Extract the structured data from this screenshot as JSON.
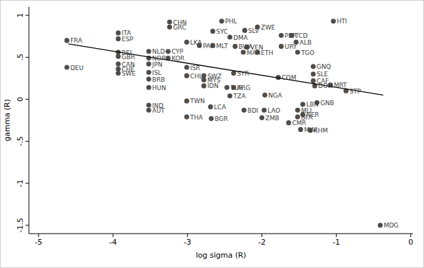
{
  "chart_data": {
    "type": "scatter",
    "x_label": "log sigma (R)",
    "y_label": "gamma (R)",
    "xlim": [
      -5.13,
      0.03
    ],
    "ylim": [
      -1.6,
      1.1
    ],
    "xticks": [
      -5,
      -4,
      -3,
      -2,
      -1,
      0
    ],
    "yticks": [
      -1.5,
      -1,
      {
        "value": -0.5,
        "label": "-.5"
      },
      0,
      {
        "value": 0.5,
        "label": ".5"
      },
      1
    ],
    "color": "#4d4d4d",
    "marker": "circle",
    "labels": [
      "FRA",
      "DEU",
      "ITA",
      "ESP",
      "BEL",
      "GBR",
      "CAN",
      "CHE",
      "SWE",
      "NLD",
      "NOR",
      "JPN",
      "ISL",
      "BRB",
      "HUN",
      "IND",
      "AUT",
      "CHN",
      "GRC",
      "CYP",
      "KOR",
      "LKA",
      "PAK",
      "ISR",
      "CHL",
      "SWZ",
      "MYS",
      "IDN",
      "TWN",
      "THA",
      "PHL",
      "SYC",
      "DMA",
      "MLT",
      "BWA",
      "VEN",
      "ZWE",
      "SLV",
      "PER",
      "TCD",
      "ALB",
      "URY",
      "TGO",
      "ETH",
      "MAR",
      "ARG",
      "TUR",
      "TZA",
      "SYR",
      "GNQ",
      "SLE",
      "MRT",
      "STP",
      "DOM",
      "HTI",
      "NGA",
      "LBN",
      "GNB",
      "MLI",
      "NER",
      "BFA",
      "CMR",
      "MWI",
      "KHM",
      "LAO",
      "ZMB",
      "BDI",
      "LCA",
      "BGR",
      "MDG",
      "COM",
      "CAF"
    ],
    "x": [
      -4.62,
      -4.62,
      -3.93,
      -3.93,
      -3.93,
      -3.93,
      -3.93,
      -3.93,
      -3.93,
      -3.52,
      -3.52,
      -3.52,
      -3.52,
      -3.52,
      -3.52,
      -3.52,
      -3.52,
      -3.24,
      -3.24,
      -3.26,
      -3.26,
      -3.01,
      -2.84,
      -3.01,
      -3.01,
      -2.78,
      -2.78,
      -2.78,
      -3.01,
      -3.01,
      -2.54,
      -2.66,
      -2.43,
      -2.66,
      -2.36,
      -2.2,
      -2.06,
      -2.23,
      -1.74,
      -1.6,
      -1.54,
      -1.74,
      -1.52,
      -2.06,
      -2.25,
      -2.38,
      -2.47,
      -2.43,
      -2.38,
      -1.31,
      -1.31,
      -1.08,
      -0.87,
      -1.29,
      -1.04,
      -1.96,
      -1.45,
      -1.26,
      -1.52,
      -1.45,
      -1.52,
      -1.64,
      -1.48,
      -1.35,
      -1.97,
      -2.0,
      -2.24,
      -2.69,
      -2.68,
      -0.41,
      -1.78,
      -1.31
    ],
    "values": [
      0.7,
      0.38,
      0.79,
      0.72,
      0.56,
      0.51,
      0.42,
      0.36,
      0.31,
      0.57,
      0.49,
      0.42,
      0.32,
      0.24,
      0.14,
      -0.07,
      -0.13,
      0.92,
      0.86,
      0.57,
      0.49,
      0.68,
      0.64,
      0.38,
      0.28,
      0.28,
      0.23,
      0.16,
      -0.02,
      -0.21,
      0.93,
      0.81,
      0.74,
      0.64,
      0.63,
      0.62,
      0.86,
      0.82,
      0.76,
      0.76,
      0.68,
      0.63,
      0.56,
      0.56,
      0.56,
      0.14,
      0.14,
      0.04,
      0.31,
      0.39,
      0.3,
      0.17,
      0.1,
      0.16,
      0.93,
      0.05,
      -0.06,
      -0.04,
      -0.13,
      -0.18,
      -0.21,
      -0.28,
      -0.36,
      -0.37,
      -0.13,
      -0.22,
      -0.13,
      -0.09,
      -0.23,
      -1.5,
      0.26,
      0.22
    ],
    "fit_line": {
      "x": [
        -4.6,
        -0.37
      ],
      "values": [
        0.66,
        0.05
      ],
      "color": "#000000",
      "line_style": "solid"
    }
  }
}
